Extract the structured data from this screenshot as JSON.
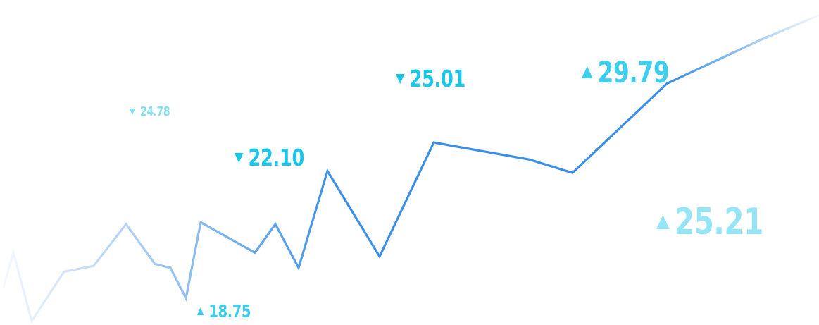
{
  "chart_data": {
    "type": "line",
    "line_color": "#3a8ee6",
    "label_color": "#19c6ec",
    "x": [
      1,
      2,
      3,
      4,
      5,
      6,
      7,
      8,
      9,
      10,
      11,
      12,
      13,
      14,
      15,
      16,
      17,
      18,
      19,
      20,
      21
    ],
    "values": [
      18.9,
      20.7,
      17.1,
      19.7,
      20.0,
      22.2,
      20.1,
      19.9,
      18.3,
      22.3,
      20.7,
      22.2,
      19.9,
      25.0,
      20.5,
      26.5,
      25.6,
      24.9,
      29.6,
      31.9,
      33.2
    ],
    "ylim": [
      16,
      34
    ],
    "annotations": [
      {
        "text": "24.78",
        "direction": "down"
      },
      {
        "text": "22.10",
        "direction": "down"
      },
      {
        "text": "18.75",
        "direction": "up"
      },
      {
        "text": "25.01",
        "direction": "down"
      },
      {
        "text": "29.79",
        "direction": "up"
      },
      {
        "text": "25.21",
        "direction": "up"
      }
    ]
  }
}
